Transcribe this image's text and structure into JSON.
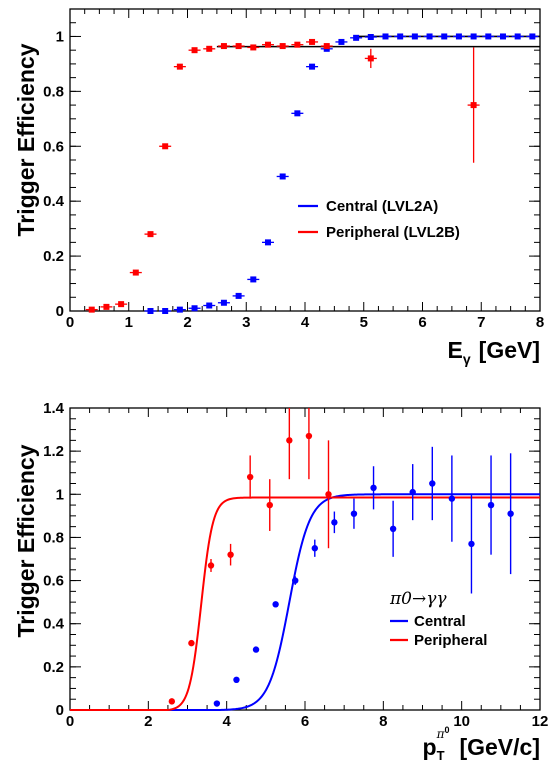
{
  "chart_data": [
    {
      "type": "scatter",
      "xlabel": "E",
      "xlabel_sub": "γ",
      "xlabel_unit": "[GeV]",
      "ylabel": "Trigger Efficiency",
      "xlim": [
        0,
        8
      ],
      "ylim": [
        0,
        1.1
      ],
      "x_ticks": [
        "0",
        "1",
        "2",
        "3",
        "4",
        "5",
        "6",
        "7",
        "8"
      ],
      "y_ticks": [
        "0",
        "0.2",
        "0.4",
        "0.6",
        "0.8",
        "1"
      ],
      "legend_position": "center-right",
      "series": [
        {
          "name": "Central (LVL2A)",
          "color": "#0000ff",
          "x": [
            1.37,
            1.62,
            1.87,
            2.12,
            2.37,
            2.62,
            2.87,
            3.12,
            3.37,
            3.62,
            3.87,
            4.12,
            4.37,
            4.62,
            4.87,
            5.12,
            5.37,
            5.62,
            5.87,
            6.12,
            6.37,
            6.62,
            6.87,
            7.12,
            7.37,
            7.62,
            7.87
          ],
          "y": [
            0.0,
            0.0,
            0.005,
            0.01,
            0.02,
            0.03,
            0.055,
            0.115,
            0.25,
            0.49,
            0.72,
            0.89,
            0.955,
            0.98,
            0.995,
            0.998,
            1.0,
            1.0,
            1.0,
            1.0,
            1.0,
            1.0,
            1.0,
            1.0,
            1.0,
            1.0,
            1.0
          ],
          "yerr": [
            0,
            0,
            0,
            0,
            0,
            0,
            0,
            0,
            0,
            0,
            0,
            0,
            0,
            0,
            0,
            0,
            0,
            0,
            0,
            0,
            0,
            0,
            0,
            0,
            0,
            0,
            0
          ],
          "fit": {
            "type": "flat",
            "x": [
              4.9,
              8.0
            ],
            "y": 1.0
          }
        },
        {
          "name": "Peripheral (LVL2B)",
          "color": "#ff0000",
          "x": [
            0.37,
            0.62,
            0.87,
            1.12,
            1.37,
            1.62,
            1.87,
            2.12,
            2.37,
            2.62,
            2.87,
            3.12,
            3.37,
            3.62,
            3.87,
            4.12,
            4.37,
            5.12,
            6.87
          ],
          "y": [
            0.005,
            0.015,
            0.025,
            0.14,
            0.28,
            0.6,
            0.89,
            0.95,
            0.955,
            0.965,
            0.965,
            0.96,
            0.97,
            0.965,
            0.97,
            0.98,
            0.965,
            0.92,
            0.75
          ],
          "yerr": [
            0,
            0,
            0,
            0,
            0,
            0,
            0,
            0,
            0,
            0,
            0,
            0,
            0,
            0,
            0,
            0,
            0,
            0.035,
            0.21
          ],
          "fit": {
            "type": "flat",
            "x": [
              2.5,
              8.0
            ],
            "y": 0.963
          }
        }
      ]
    },
    {
      "type": "scatter",
      "xlabel": "p",
      "xlabel_sub": "T",
      "xlabel_sup": "π",
      "xlabel_sup2": "0",
      "xlabel_unit": "[GeV/c]",
      "ylabel": "Trigger Efficiency",
      "xlim": [
        0,
        12
      ],
      "ylim": [
        0,
        1.4
      ],
      "x_ticks": [
        "0",
        "2",
        "4",
        "6",
        "8",
        "10",
        "12"
      ],
      "y_ticks": [
        "0",
        "0.2",
        "0.4",
        "0.6",
        "0.8",
        "1",
        "1.2",
        "1.4"
      ],
      "legend_position": "lower-right",
      "legend_title": "π0→γγ",
      "series": [
        {
          "name": "Central",
          "color": "#0000ff",
          "x": [
            3.75,
            4.25,
            4.75,
            5.25,
            5.75,
            6.25,
            6.75,
            7.25,
            7.75,
            8.25,
            8.75,
            9.25,
            9.75,
            10.25,
            10.75,
            11.25
          ],
          "y": [
            0.03,
            0.14,
            0.28,
            0.49,
            0.6,
            0.75,
            0.87,
            0.91,
            1.03,
            0.84,
            1.01,
            1.05,
            0.98,
            0.77,
            0.95,
            0.91
          ],
          "yerr": [
            0,
            0,
            0,
            0,
            0.02,
            0.04,
            0.05,
            0.07,
            0.1,
            0.13,
            0.13,
            0.17,
            0.2,
            0.23,
            0.23,
            0.28
          ],
          "fit": {
            "x0": 3.8,
            "plateau": 1.0,
            "mid": 5.6,
            "width": 1.05
          }
        },
        {
          "name": "Peripheral",
          "color": "#ff0000",
          "x": [
            2.6,
            3.1,
            3.6,
            4.1,
            4.6,
            5.1,
            5.6,
            6.1,
            6.6
          ],
          "y": [
            0.04,
            0.31,
            0.67,
            0.72,
            1.08,
            0.95,
            1.25,
            1.27,
            1.0
          ],
          "yerr": [
            0,
            0,
            0.03,
            0.05,
            0.1,
            0.12,
            0.18,
            0.2,
            0.25
          ],
          "fit": {
            "x0": 2.5,
            "plateau": 0.985,
            "mid": 3.35,
            "width": 0.6
          }
        }
      ]
    }
  ]
}
